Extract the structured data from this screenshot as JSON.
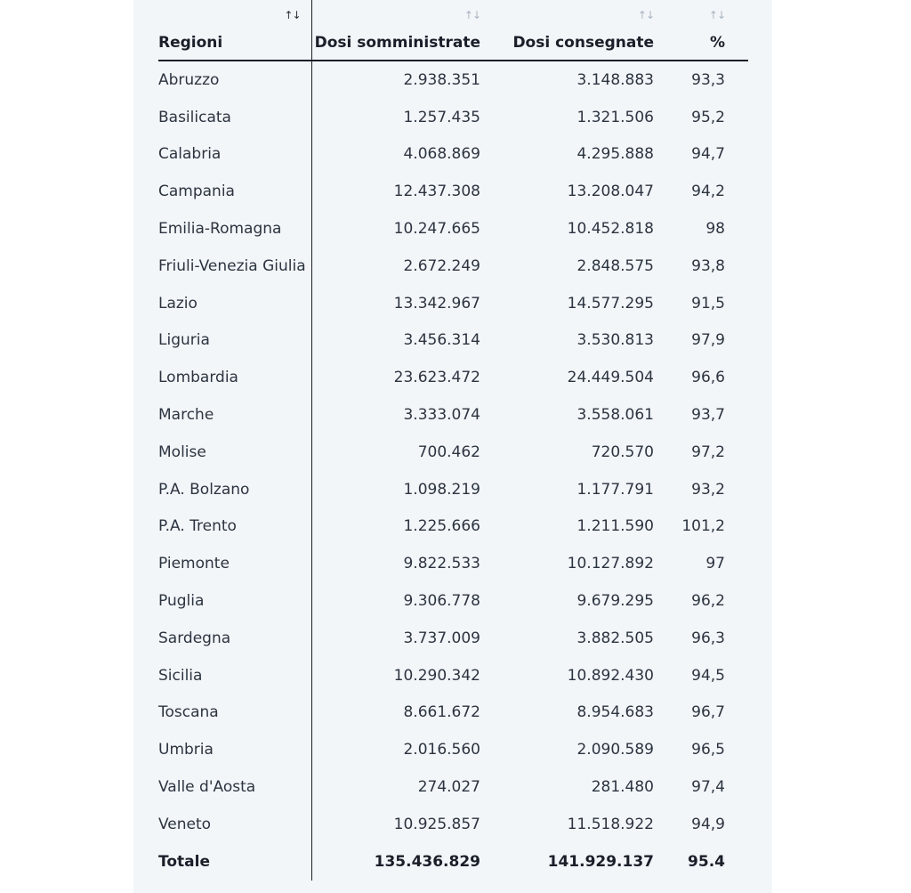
{
  "table": {
    "headers": {
      "region": "Regioni",
      "dosi_somministrate": "Dosi somministrate",
      "dosi_consegnate": "Dosi consegnate",
      "percent": "%"
    },
    "sort_icon": "↑↓",
    "rows": [
      {
        "region": "Abruzzo",
        "somministrate": "2.938.351",
        "consegnate": "3.148.883",
        "percent": "93,3"
      },
      {
        "region": "Basilicata",
        "somministrate": "1.257.435",
        "consegnate": "1.321.506",
        "percent": "95,2"
      },
      {
        "region": "Calabria",
        "somministrate": "4.068.869",
        "consegnate": "4.295.888",
        "percent": "94,7"
      },
      {
        "region": "Campania",
        "somministrate": "12.437.308",
        "consegnate": "13.208.047",
        "percent": "94,2"
      },
      {
        "region": "Emilia-Romagna",
        "somministrate": "10.247.665",
        "consegnate": "10.452.818",
        "percent": "98"
      },
      {
        "region": "Friuli-Venezia Giulia",
        "somministrate": "2.672.249",
        "consegnate": "2.848.575",
        "percent": "93,8"
      },
      {
        "region": "Lazio",
        "somministrate": "13.342.967",
        "consegnate": "14.577.295",
        "percent": "91,5"
      },
      {
        "region": "Liguria",
        "somministrate": "3.456.314",
        "consegnate": "3.530.813",
        "percent": "97,9"
      },
      {
        "region": "Lombardia",
        "somministrate": "23.623.472",
        "consegnate": "24.449.504",
        "percent": "96,6"
      },
      {
        "region": "Marche",
        "somministrate": "3.333.074",
        "consegnate": "3.558.061",
        "percent": "93,7"
      },
      {
        "region": "Molise",
        "somministrate": "700.462",
        "consegnate": "720.570",
        "percent": "97,2"
      },
      {
        "region": "P.A. Bolzano",
        "somministrate": "1.098.219",
        "consegnate": "1.177.791",
        "percent": "93,2"
      },
      {
        "region": "P.A. Trento",
        "somministrate": "1.225.666",
        "consegnate": "1.211.590",
        "percent": "101,2"
      },
      {
        "region": "Piemonte",
        "somministrate": "9.822.533",
        "consegnate": "10.127.892",
        "percent": "97"
      },
      {
        "region": "Puglia",
        "somministrate": "9.306.778",
        "consegnate": "9.679.295",
        "percent": "96,2"
      },
      {
        "region": "Sardegna",
        "somministrate": "3.737.009",
        "consegnate": "3.882.505",
        "percent": "96,3"
      },
      {
        "region": "Sicilia",
        "somministrate": "10.290.342",
        "consegnate": "10.892.430",
        "percent": "94,5"
      },
      {
        "region": "Toscana",
        "somministrate": "8.661.672",
        "consegnate": "8.954.683",
        "percent": "96,7"
      },
      {
        "region": "Umbria",
        "somministrate": "2.016.560",
        "consegnate": "2.090.589",
        "percent": "96,5"
      },
      {
        "region": "Valle d'Aosta",
        "somministrate": "274.027",
        "consegnate": "281.480",
        "percent": "97,4"
      },
      {
        "region": "Veneto",
        "somministrate": "10.925.857",
        "consegnate": "11.518.922",
        "percent": "94,9"
      }
    ],
    "total": {
      "region": "Totale",
      "somministrate": "135.436.829",
      "consegnate": "141.929.137",
      "percent": "95.4"
    }
  },
  "colors": {
    "panel_background": "#f3f6f9",
    "text": "#2c3440",
    "sort_active": "#2a2f38",
    "sort_inactive": "#a8b4c0"
  }
}
